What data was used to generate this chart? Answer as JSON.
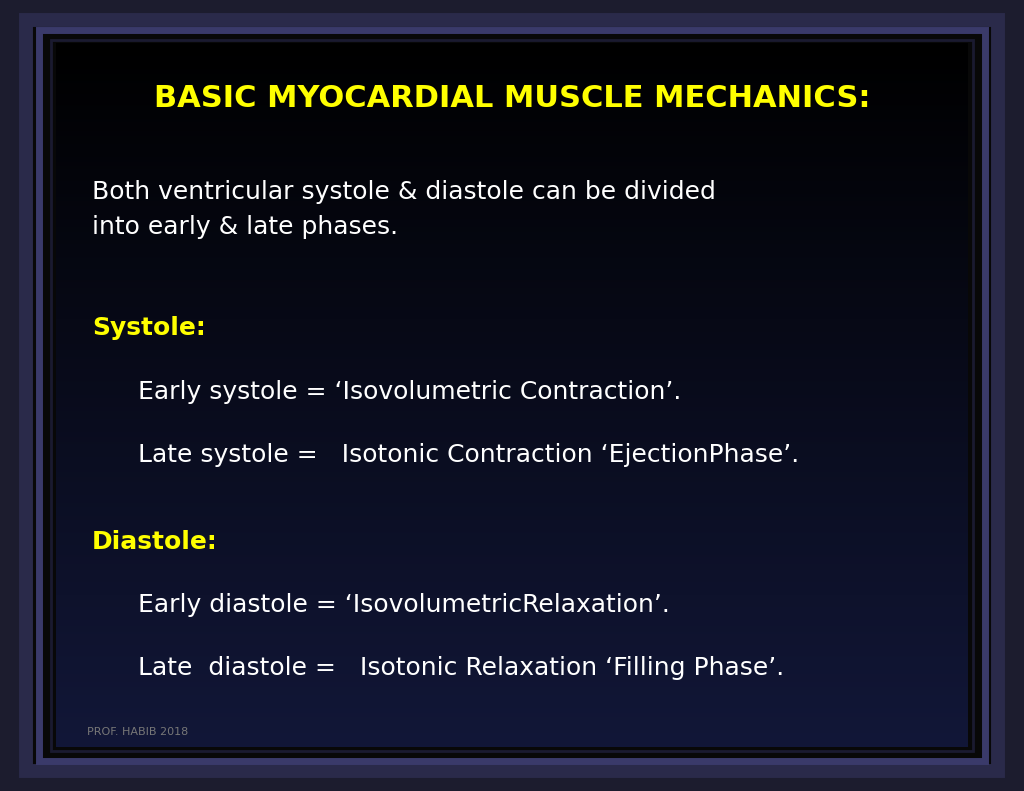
{
  "title": "BASIC MYOCARDIAL MUSCLE MECHANICS:",
  "title_color": "#FFFF00",
  "title_fontsize": 22,
  "bg_outer": "#080808",
  "text_color": "#ffffff",
  "footer_text": "PROF. HABIB 2018",
  "footer_fontsize": 8,
  "body_fontsize": 18,
  "label_fontsize": 18,
  "intro_text": "Both ventricular systole & diastole can be divided\ninto early & late phases.",
  "systole_label": "Systole:",
  "systole_line1": "Early systole = ‘Isovolumetric Contraction’.",
  "systole_line2": "Late systole =   Isotonic Contraction ‘EjectionPhase’.",
  "diastole_label": "Diastole:",
  "diastole_line1": "Early diastole = ‘IsovolumetricRelaxation’.",
  "diastole_line2": "Late  diastole =   Isotonic Relaxation ‘Filling Phase’."
}
